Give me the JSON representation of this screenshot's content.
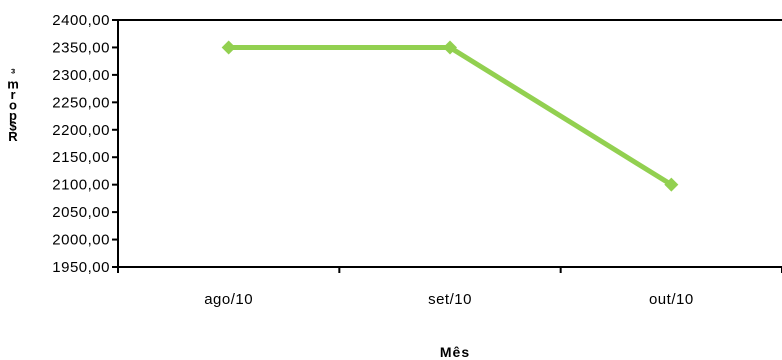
{
  "chart_data": {
    "type": "line",
    "categories": [
      "ago/10",
      "set/10",
      "out/10"
    ],
    "series": [
      {
        "values": [
          2350,
          2350,
          2100
        ],
        "color": "#92D050"
      }
    ],
    "xlabel": "Mês",
    "ylabel": "R$ por m³",
    "ylim": [
      1950,
      2400
    ],
    "ytick_step": 50,
    "ytick_labels": [
      "1950,00",
      "2000,00",
      "2050,00",
      "2100,00",
      "2150,00",
      "2200,00",
      "2250,00",
      "2300,00",
      "2350,00",
      "2400,00"
    ],
    "grid": false,
    "legend": "none"
  }
}
